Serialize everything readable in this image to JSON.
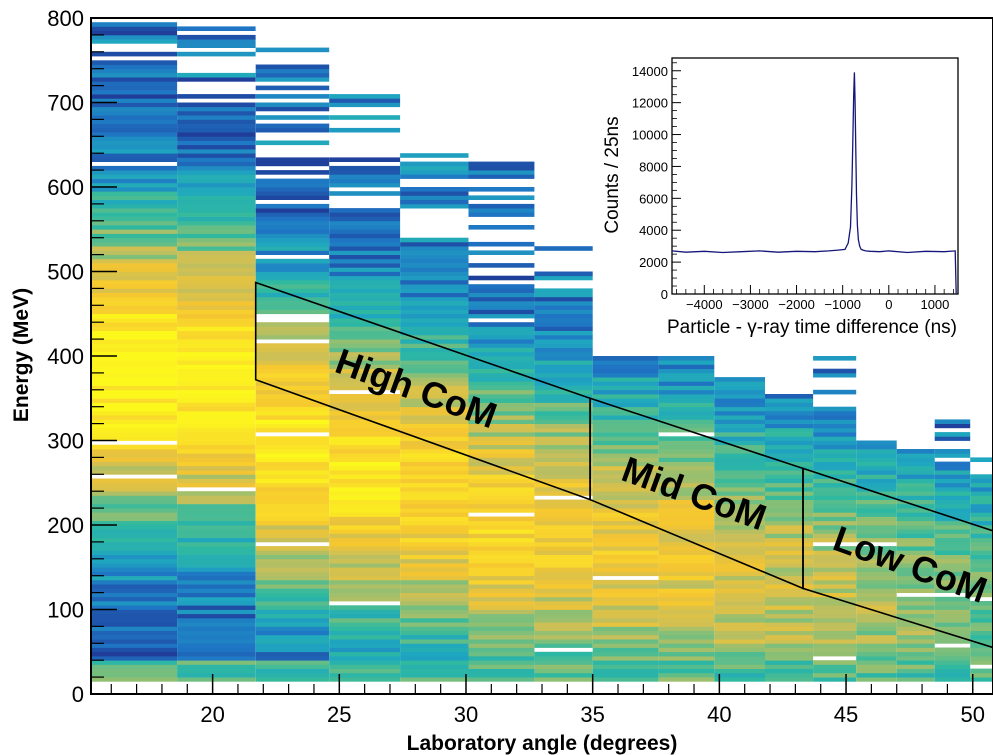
{
  "chart_data": [
    {
      "type": "heatmap",
      "title": "",
      "xlabel": "Laboratory angle (degrees)",
      "ylabel": "Energy (MeV)",
      "xlim": [
        15.2,
        50.8
      ],
      "ylim": [
        0,
        800
      ],
      "xticks": [
        20,
        25,
        30,
        35,
        40,
        45,
        50
      ],
      "yticks": [
        0,
        100,
        200,
        300,
        400,
        500,
        600,
        700,
        800
      ],
      "colormap": [
        "#1f3d99",
        "#1f75c4",
        "#1fa6c0",
        "#2fb9a0",
        "#7fbf7a",
        "#c8bf5a",
        "#f5c531",
        "#fadc2a",
        "#fcf81c"
      ],
      "columns": [
        {
          "x0": 15.2,
          "x1": 18.6,
          "ymax": 795,
          "peak": 380
        },
        {
          "x0": 18.6,
          "x1": 21.7,
          "ymax": 800,
          "peak": 370
        },
        {
          "x0": 21.7,
          "x1": 24.6,
          "ymax": 770,
          "peak": 290
        },
        {
          "x0": 24.6,
          "x1": 27.4,
          "ymax": 715,
          "peak": 260
        },
        {
          "x0": 27.4,
          "x1": 30.1,
          "ymax": 640,
          "peak": 240
        },
        {
          "x0": 30.1,
          "x1": 32.7,
          "ymax": 630,
          "peak": 200
        },
        {
          "x0": 32.7,
          "x1": 35.0,
          "ymax": 530,
          "peak": 190
        },
        {
          "x0": 35.0,
          "x1": 37.6,
          "ymax": 400,
          "peak": 170
        },
        {
          "x0": 37.6,
          "x1": 39.8,
          "ymax": 400,
          "peak": 160
        },
        {
          "x0": 39.8,
          "x1": 41.8,
          "ymax": 380,
          "peak": 140
        },
        {
          "x0": 41.8,
          "x1": 43.7,
          "ymax": 360,
          "peak": 130
        },
        {
          "x0": 43.7,
          "x1": 45.4,
          "ymax": 400,
          "peak": 120
        },
        {
          "x0": 45.4,
          "x1": 47.0,
          "ymax": 300,
          "peak": 110
        },
        {
          "x0": 47.0,
          "x1": 48.5,
          "ymax": 300,
          "peak": 105
        },
        {
          "x0": 48.5,
          "x1": 49.9,
          "ymax": 330,
          "peak": 100
        },
        {
          "x0": 49.9,
          "x1": 50.8,
          "ymax": 290,
          "peak": 95
        }
      ],
      "regions": [
        {
          "label": "High CoM",
          "polygon": [
            [
              21.7,
              487
            ],
            [
              34.9,
              350
            ],
            [
              34.9,
              230
            ],
            [
              21.7,
              372
            ]
          ]
        },
        {
          "label": "Mid CoM",
          "polygon": [
            [
              34.9,
              350
            ],
            [
              43.3,
              267
            ],
            [
              43.3,
              125
            ],
            [
              34.9,
              230
            ]
          ]
        },
        {
          "label": "Low CoM",
          "polygon": [
            [
              43.3,
              267
            ],
            [
              50.8,
              193
            ],
            [
              50.8,
              55
            ],
            [
              43.3,
              125
            ]
          ]
        }
      ]
    },
    {
      "type": "line",
      "title": "",
      "xlabel": "Particle - γ-ray time difference (ns)",
      "ylabel": "Counts / 25ns",
      "xlim": [
        -4700,
        1500
      ],
      "ylim": [
        0,
        14800
      ],
      "xticks": [
        -4000,
        -3000,
        -2000,
        -1000,
        0,
        1000
      ],
      "xtick_labels": [
        "−4000",
        "−3000",
        "−2000",
        "−1000",
        "0",
        "1000"
      ],
      "yticks": [
        0,
        2000,
        4000,
        6000,
        8000,
        10000,
        12000,
        14000
      ],
      "line_color": "#16167a",
      "series": [
        {
          "x": [
            -4700,
            -4400,
            -4000,
            -3600,
            -3200,
            -2800,
            -2400,
            -2000,
            -1600,
            -1300,
            -1100,
            -950,
            -880,
            -830,
            -800,
            -780,
            -760,
            -745,
            -730,
            -715,
            -700,
            -680,
            -660,
            -630,
            -600,
            -560,
            -500,
            -400,
            -200,
            0,
            400,
            800,
            1200,
            1440,
            1460
          ],
          "y": [
            2700,
            2620,
            2680,
            2600,
            2650,
            2700,
            2620,
            2680,
            2650,
            2700,
            2750,
            2800,
            3200,
            4200,
            6800,
            9500,
            12500,
            13900,
            12000,
            9000,
            6200,
            4300,
            3400,
            3000,
            2800,
            2750,
            2700,
            2680,
            2650,
            2700,
            2600,
            2680,
            2650,
            2700,
            0
          ]
        }
      ]
    }
  ]
}
